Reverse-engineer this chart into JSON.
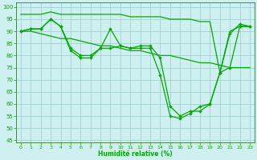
{
  "xlabel": "Humidité relative (%)",
  "bg_color": "#cff0f0",
  "grid_color": "#99cccc",
  "line_color": "#00aa00",
  "ylim": [
    44,
    102
  ],
  "xlim": [
    -0.5,
    23.5
  ],
  "yticks": [
    45,
    50,
    55,
    60,
    65,
    70,
    75,
    80,
    85,
    90,
    95,
    100
  ],
  "xticks": [
    0,
    1,
    2,
    3,
    4,
    5,
    6,
    7,
    8,
    9,
    10,
    11,
    12,
    13,
    14,
    15,
    16,
    17,
    18,
    19,
    20,
    21,
    22,
    23
  ],
  "line_diagonal": [
    90,
    90,
    89,
    88,
    87,
    87,
    86,
    85,
    84,
    84,
    83,
    82,
    82,
    81,
    80,
    80,
    79,
    78,
    77,
    77,
    76,
    75,
    75,
    75
  ],
  "line_flat_top": [
    97,
    97,
    97,
    98,
    97,
    97,
    97,
    97,
    97,
    97,
    97,
    96,
    96,
    96,
    96,
    95,
    95,
    95,
    94,
    94,
    73,
    90,
    92,
    92
  ],
  "line_marker1": [
    90,
    91,
    91,
    95,
    92,
    82,
    79,
    79,
    83,
    91,
    84,
    83,
    84,
    84,
    79,
    59,
    55,
    57,
    57,
    60,
    73,
    89,
    93,
    92
  ],
  "line_marker2": [
    90,
    91,
    91,
    95,
    92,
    83,
    80,
    80,
    83,
    83,
    84,
    83,
    83,
    83,
    72,
    55,
    54,
    56,
    59,
    60,
    73,
    75,
    92,
    92
  ]
}
